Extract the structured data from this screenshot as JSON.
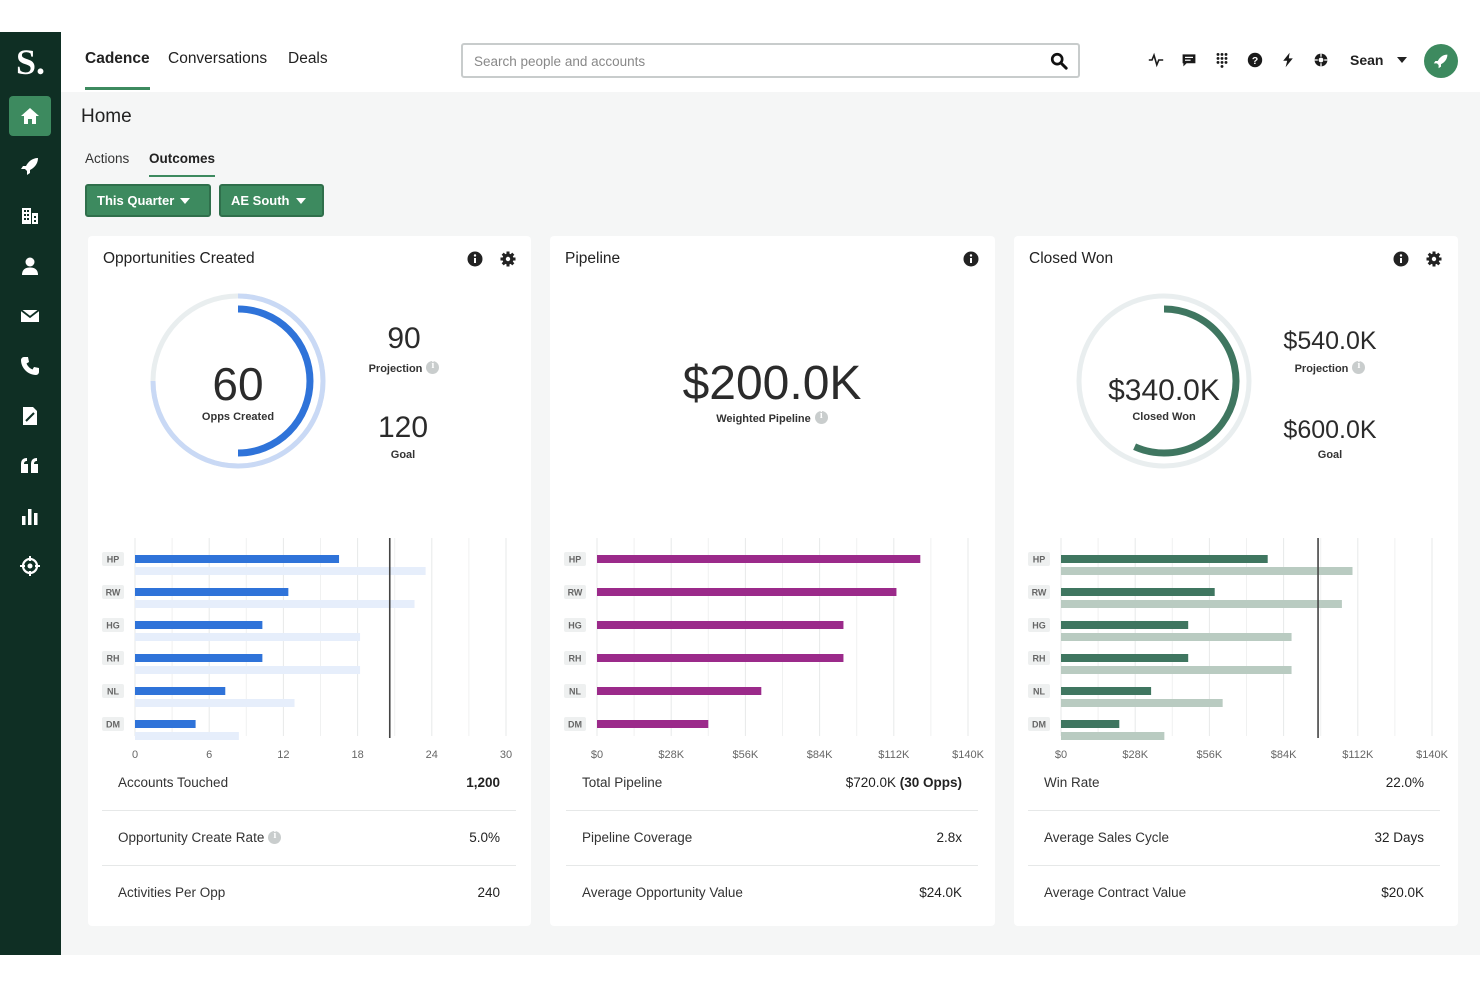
{
  "app": {
    "logo": "S."
  },
  "topnav": {
    "tabs": [
      {
        "label": "Cadence",
        "active": true
      },
      {
        "label": "Conversations",
        "active": false
      },
      {
        "label": "Deals",
        "active": false
      }
    ],
    "search_placeholder": "Search people and accounts",
    "user_name": "Sean",
    "icons": [
      "activity-icon",
      "chat-icon",
      "dialpad-icon",
      "help-icon",
      "lightning-icon",
      "settings-icon"
    ]
  },
  "sidebar": {
    "items": [
      {
        "icon": "home-icon",
        "active": true
      },
      {
        "icon": "rocket-icon",
        "active": false
      },
      {
        "icon": "building-icon",
        "active": false
      },
      {
        "icon": "person-icon",
        "active": false
      },
      {
        "icon": "mail-icon",
        "active": false
      },
      {
        "icon": "phone-icon",
        "active": false
      },
      {
        "icon": "document-icon",
        "active": false
      },
      {
        "icon": "quote-icon",
        "active": false
      },
      {
        "icon": "bar-chart-icon",
        "active": false
      },
      {
        "icon": "crosshair-icon",
        "active": false
      }
    ]
  },
  "page": {
    "title": "Home",
    "subtabs": [
      {
        "label": "Actions",
        "active": false
      },
      {
        "label": "Outcomes",
        "active": true
      }
    ],
    "filters": [
      {
        "label": "This Quarter"
      },
      {
        "label": "AE South"
      }
    ]
  },
  "colors": {
    "brand_green": "#3d8a5f",
    "sidebar": "#0f2f24",
    "blue": "#2f73d9",
    "purple": "#9b2a8a",
    "dark_green": "#3f7660"
  },
  "cards": {
    "opps": {
      "title": "Opportunities Created",
      "big_value": "60",
      "big_caption": "Opps Created",
      "projection_value": "90",
      "projection_label": "Projection",
      "goal_value": "120",
      "goal_label": "Goal",
      "progress": 0.5,
      "projection_progress": 0.75,
      "stats": [
        {
          "label": "Accounts Touched",
          "value": "1,200"
        },
        {
          "label": "Opportunity Create Rate",
          "value": "5.0%",
          "info": true
        },
        {
          "label": "Activities Per Opp",
          "value": "240"
        }
      ]
    },
    "pipeline": {
      "title": "Pipeline",
      "big_value": "$200.0K",
      "big_caption": "Weighted Pipeline",
      "stats": [
        {
          "label": "Total Pipeline",
          "value": "$720.0K ",
          "value_bold": "(30 Opps)"
        },
        {
          "label": "Pipeline Coverage",
          "value": "2.8x"
        },
        {
          "label": "Average Opportunity Value",
          "value": "$24.0K"
        }
      ]
    },
    "closed": {
      "title": "Closed Won",
      "big_value": "$340.0K",
      "big_caption": "Closed Won",
      "projection_value": "$540.0K",
      "projection_label": "Projection",
      "goal_value": "$600.0K",
      "goal_label": "Goal",
      "progress": 0.567,
      "stats": [
        {
          "label": "Win Rate",
          "value": "22.0%"
        },
        {
          "label": "Average Sales Cycle",
          "value": "32 Days"
        },
        {
          "label": "Average Contract Value",
          "value": "$20.0K"
        }
      ]
    }
  },
  "chart_data": [
    {
      "type": "bar",
      "orientation": "horizontal",
      "categories": [
        "HP",
        "RW",
        "HG",
        "RH",
        "NL",
        "DM"
      ],
      "series": [
        {
          "values": [
            16.5,
            12.4,
            10.3,
            10.3,
            7.3,
            4.9
          ]
        },
        {
          "values": [
            23.5,
            22.6,
            18.2,
            18.2,
            12.9,
            8.4
          ]
        }
      ],
      "x_ticks": [
        "0",
        "6",
        "12",
        "18",
        "24",
        "30"
      ],
      "xlim": [
        0,
        30
      ],
      "reference_line": 20.6,
      "grid": true
    },
    {
      "type": "bar",
      "orientation": "horizontal",
      "categories": [
        "HP",
        "RW",
        "HG",
        "RH",
        "NL",
        "DM"
      ],
      "series": [
        {
          "values": [
            122,
            113,
            93,
            93,
            62,
            42
          ]
        }
      ],
      "x_ticks": [
        "$0",
        "$28K",
        "$56K",
        "$84K",
        "$112K",
        "$140K"
      ],
      "xlim": [
        0,
        140
      ],
      "grid": true
    },
    {
      "type": "bar",
      "orientation": "horizontal",
      "categories": [
        "HP",
        "RW",
        "HG",
        "RH",
        "NL",
        "DM"
      ],
      "series": [
        {
          "values": [
            78,
            58,
            48,
            48,
            34,
            22
          ]
        },
        {
          "values": [
            110,
            106,
            87,
            87,
            61,
            39
          ]
        }
      ],
      "x_ticks": [
        "$0",
        "$28K",
        "$56K",
        "$84K",
        "$112K",
        "$140K"
      ],
      "xlim": [
        0,
        140
      ],
      "reference_line": 97,
      "grid": true
    }
  ]
}
